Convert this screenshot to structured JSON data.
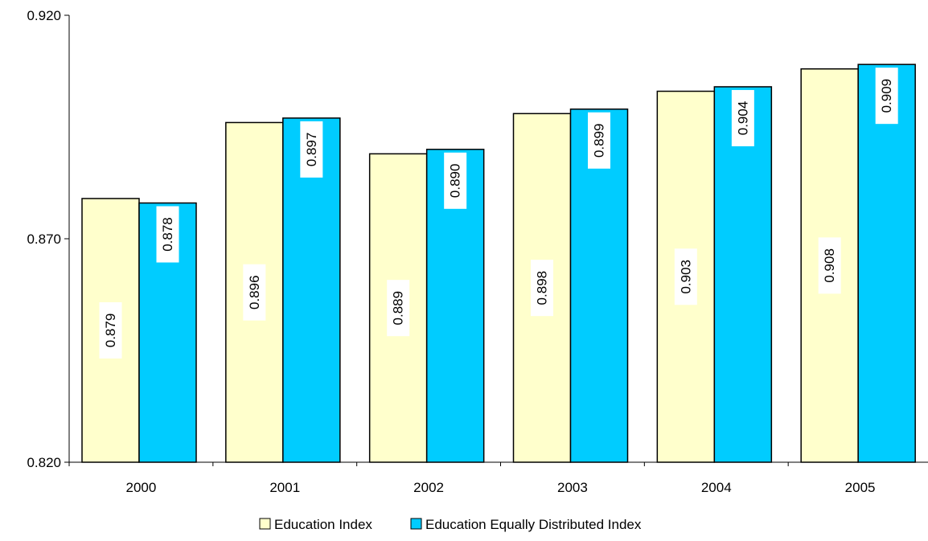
{
  "chart_data": {
    "type": "bar",
    "categories": [
      "2000",
      "2001",
      "2002",
      "2003",
      "2004",
      "2005"
    ],
    "series": [
      {
        "name": "Education Index",
        "values": [
          0.879,
          0.896,
          0.889,
          0.898,
          0.903,
          0.908
        ],
        "color": "#FFFFCC"
      },
      {
        "name": "Education Equally Distributed Index",
        "values": [
          0.878,
          0.897,
          0.89,
          0.899,
          0.904,
          0.909
        ],
        "color": "#00CCFF"
      }
    ],
    "y_ticks": [
      "0.820",
      "0.870",
      "0.920"
    ],
    "ylim": [
      0.82,
      0.92
    ],
    "title": "",
    "xlabel": "",
    "ylabel": "",
    "legend_position": "bottom",
    "grid": false,
    "data_labels": true,
    "data_label_rotation": "vertical"
  }
}
